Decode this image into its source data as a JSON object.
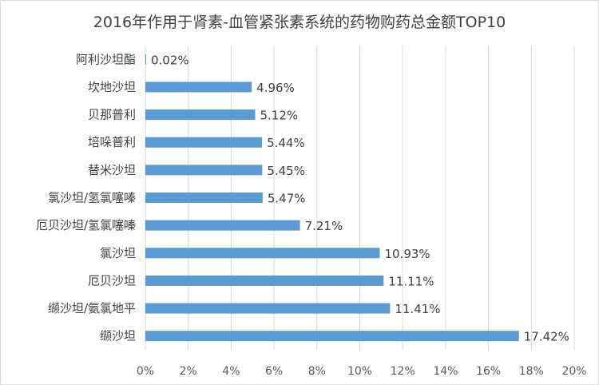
{
  "chart_data": {
    "type": "bar",
    "orientation": "horizontal",
    "title": "2016年作用于肾素-血管紧张素系统的药物购药总金额TOP10",
    "categories": [
      "阿利沙坦酯",
      "坎地沙坦",
      "贝那普利",
      "培哚普利",
      "替米沙坦",
      "氯沙坦/氢氯噻嗪",
      "厄贝沙坦/氢氯噻嗪",
      "氯沙坦",
      "厄贝沙坦",
      "缬沙坦/氨氯地平",
      "缬沙坦"
    ],
    "values": [
      0.02,
      4.96,
      5.12,
      5.44,
      5.45,
      5.47,
      7.21,
      10.93,
      11.11,
      11.41,
      17.42
    ],
    "value_labels": [
      "0.02%",
      "4.96%",
      "5.12%",
      "5.44%",
      "5.45%",
      "5.47%",
      "7.21%",
      "10.93%",
      "11.11%",
      "11.41%",
      "17.42%"
    ],
    "xlim": [
      0,
      20
    ],
    "xticks": [
      0,
      2,
      4,
      6,
      8,
      10,
      12,
      14,
      16,
      18,
      20
    ],
    "xtick_labels": [
      "0%",
      "2%",
      "4%",
      "6%",
      "8%",
      "10%",
      "12%",
      "14%",
      "16%",
      "18%",
      "20%"
    ],
    "grid": true,
    "legend": "none",
    "bar_color": "#5b9bd5",
    "grid_color": "#d9d9d9"
  }
}
